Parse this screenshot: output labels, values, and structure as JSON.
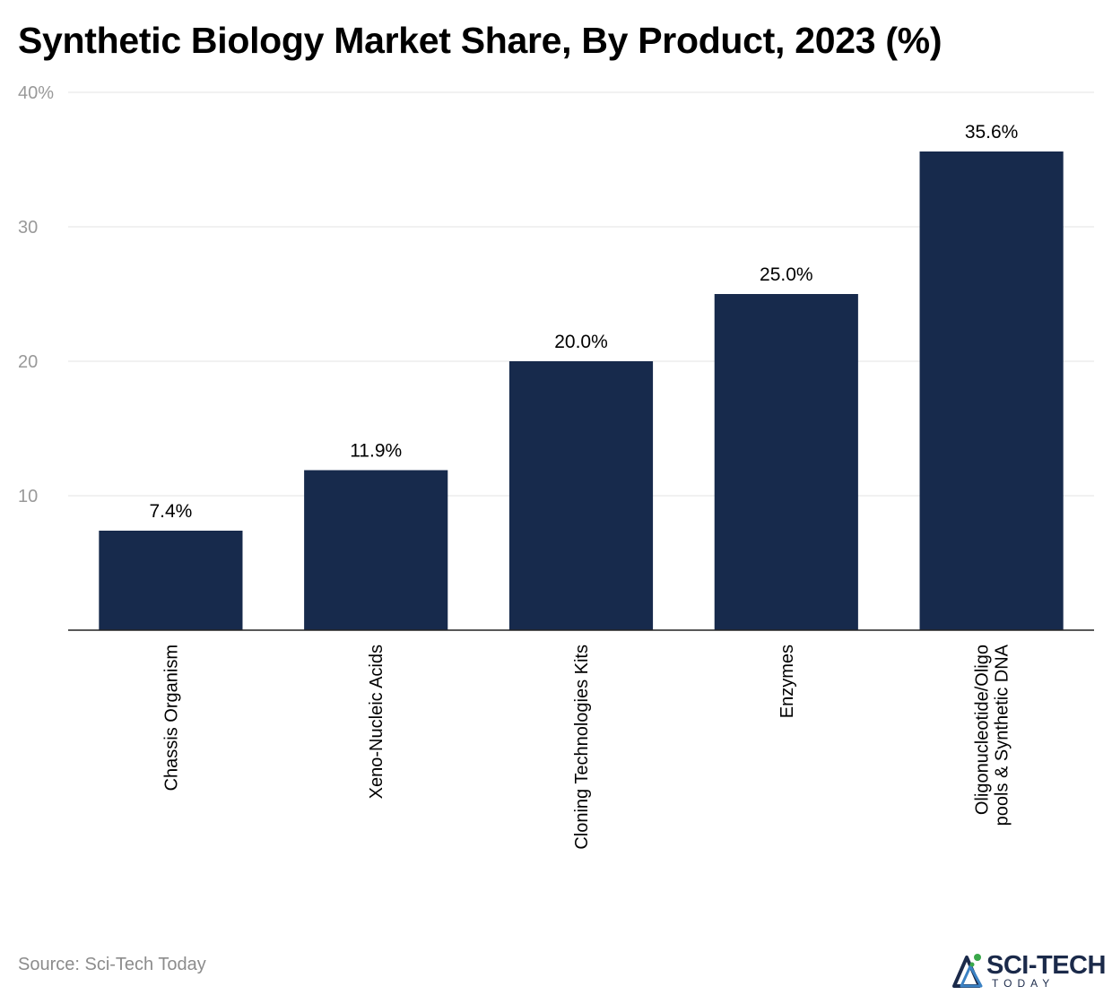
{
  "title": "Synthetic Biology Market Share, By Product, 2023 (%)",
  "source": "Source: Sci-Tech Today",
  "logo": {
    "name": "SCI-TECH",
    "tagline": "TODAY"
  },
  "colors": {
    "bar": "#172a4c",
    "grid": "#e3e3e3",
    "axis": "#222222",
    "tick_label": "#999999",
    "text": "#000000"
  },
  "chart_data": {
    "type": "bar",
    "title": "Synthetic Biology Market Share, By Product, 2023 (%)",
    "xlabel": "",
    "ylabel": "",
    "categories": [
      "Chassis Organism",
      "Xeno-Nucleic Acids",
      "Cloning Technologies Kits",
      "Enzymes",
      "Oligonucleotide/Oligo pools & Synthetic DNA"
    ],
    "values": [
      7.4,
      11.9,
      20.0,
      25.0,
      35.6
    ],
    "data_labels": [
      "7.4%",
      "11.9%",
      "20.0%",
      "25.0%",
      "35.6%"
    ],
    "ylim": [
      0,
      40
    ],
    "yticks": [
      10,
      20,
      30,
      40
    ],
    "ytick_labels": [
      "10",
      "20",
      "30",
      "40%"
    ],
    "grid": true,
    "legend": "none"
  }
}
